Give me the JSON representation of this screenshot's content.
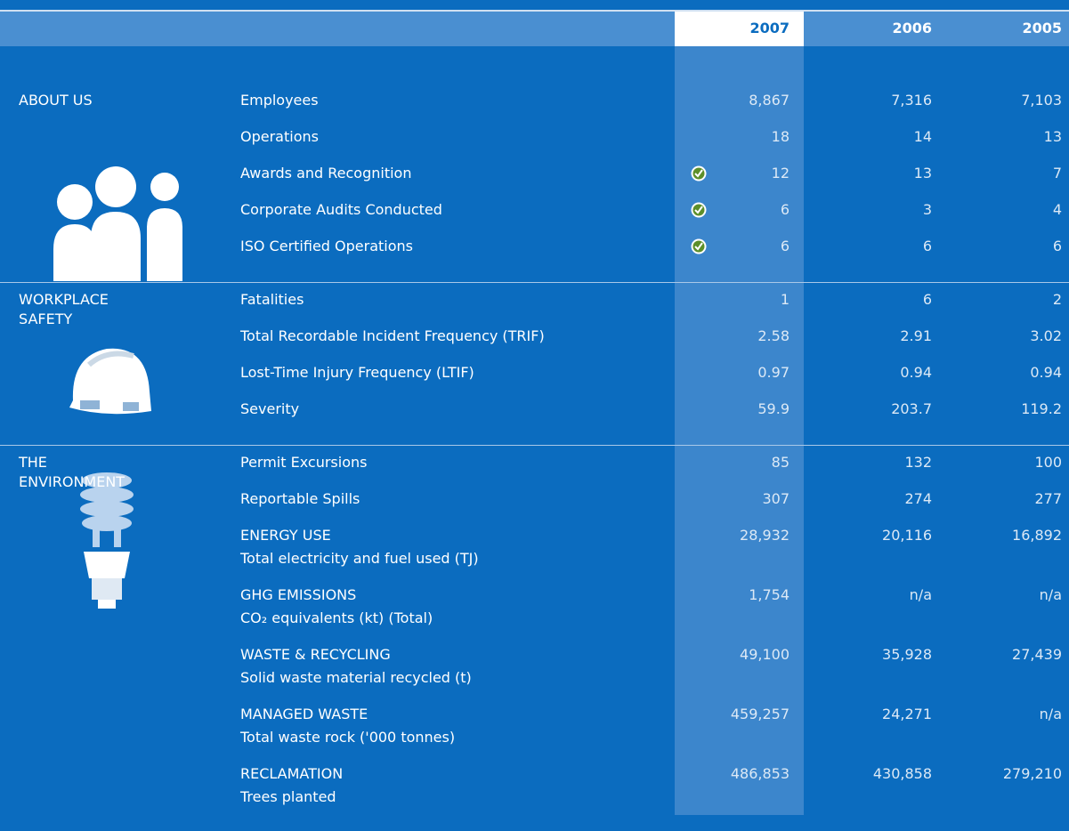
{
  "header": {
    "columns": [
      "2007",
      "2006",
      "2005"
    ]
  },
  "sections": [
    {
      "title": "ABOUT US",
      "rows": [
        {
          "label": "Employees",
          "values": [
            "8,867",
            "7,316",
            "7,103"
          ],
          "checked": false
        },
        {
          "label": "Operations",
          "values": [
            "18",
            "14",
            "13"
          ],
          "checked": false
        },
        {
          "label": "Awards and Recognition",
          "values": [
            "12",
            "13",
            "7"
          ],
          "checked": true
        },
        {
          "label": "Corporate Audits Conducted",
          "values": [
            "6",
            "3",
            "4"
          ],
          "checked": true
        },
        {
          "label": "ISO Certified Operations",
          "values": [
            "6",
            "6",
            "6"
          ],
          "checked": true
        }
      ]
    },
    {
      "title": "WORKPLACE SAFETY",
      "rows": [
        {
          "label": "Fatalities",
          "values": [
            "1",
            "6",
            "2"
          ],
          "checked": false
        },
        {
          "label": "Total Recordable Incident Frequency (TRIF)",
          "values": [
            "2.58",
            "2.91",
            "3.02"
          ],
          "checked": false
        },
        {
          "label": "Lost-Time Injury Frequency (LTIF)",
          "values": [
            "0.97",
            "0.94",
            "0.94"
          ],
          "checked": false
        },
        {
          "label": "Severity",
          "values": [
            "59.9",
            "203.7",
            "119.2"
          ],
          "checked": false
        }
      ]
    },
    {
      "title": "THE ENVIRONMENT",
      "rows": [
        {
          "label": "Permit Excursions",
          "values": [
            "85",
            "132",
            "100"
          ],
          "checked": false
        },
        {
          "label": "Reportable Spills",
          "values": [
            "307",
            "274",
            "277"
          ],
          "checked": false
        },
        {
          "label": "ENERGY USE",
          "sublabel": "Total electricity and fuel used (TJ)",
          "values": [
            "28,932",
            "20,116",
            "16,892"
          ],
          "checked": false
        },
        {
          "label": "GHG EMISSIONS",
          "sublabel": "CO₂ equivalents (kt) (Total)",
          "values": [
            "1,754",
            "n/a",
            "n/a"
          ],
          "checked": false
        },
        {
          "label": "WASTE & RECYCLING",
          "sublabel": "Solid waste material recycled (t)",
          "values": [
            "49,100",
            "35,928",
            "27,439"
          ],
          "checked": false
        },
        {
          "label": "MANAGED WASTE",
          "sublabel": "Total waste rock ('000 tonnes)",
          "values": [
            "459,257",
            "24,271",
            "n/a"
          ],
          "checked": false
        },
        {
          "label": "RECLAMATION",
          "sublabel": "Trees planted",
          "values": [
            "486,853",
            "430,858",
            "279,210"
          ],
          "checked": false
        }
      ]
    }
  ]
}
